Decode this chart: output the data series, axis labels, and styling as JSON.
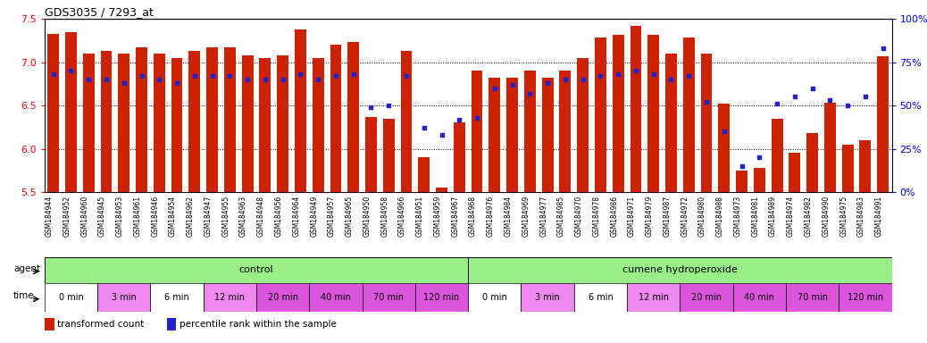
{
  "title": "GDS3035 / 7293_at",
  "bar_color": "#cc2200",
  "dot_color": "#2222cc",
  "ylim_left": [
    5.5,
    7.5
  ],
  "ylim_right": [
    0,
    100
  ],
  "yticks_left": [
    5.5,
    6.0,
    6.5,
    7.0,
    7.5
  ],
  "yticks_right": [
    0,
    25,
    50,
    75,
    100
  ],
  "samples": [
    "GSM184944",
    "GSM184952",
    "GSM184960",
    "GSM184945",
    "GSM184953",
    "GSM184961",
    "GSM184946",
    "GSM184954",
    "GSM184962",
    "GSM184947",
    "GSM184955",
    "GSM184963",
    "GSM184948",
    "GSM184956",
    "GSM184964",
    "GSM184949",
    "GSM184957",
    "GSM184965",
    "GSM184950",
    "GSM184958",
    "GSM184966",
    "GSM184951",
    "GSM184959",
    "GSM184967",
    "GSM184968",
    "GSM184976",
    "GSM184984",
    "GSM184969",
    "GSM184977",
    "GSM184985",
    "GSM184970",
    "GSM184978",
    "GSM184986",
    "GSM184971",
    "GSM184979",
    "GSM184987",
    "GSM184972",
    "GSM184980",
    "GSM184988",
    "GSM184973",
    "GSM184981",
    "GSM184989",
    "GSM184974",
    "GSM184982",
    "GSM184990",
    "GSM184975",
    "GSM184983",
    "GSM184991"
  ],
  "bar_values": [
    7.33,
    7.35,
    7.1,
    7.13,
    7.1,
    7.17,
    7.1,
    7.05,
    7.13,
    7.17,
    7.17,
    7.08,
    7.05,
    7.08,
    7.38,
    7.05,
    7.2,
    7.23,
    6.37,
    6.35,
    7.13,
    5.9,
    5.55,
    6.3,
    6.9,
    6.82,
    6.82,
    6.9,
    6.82,
    6.9,
    7.05,
    7.28,
    7.32,
    7.42,
    7.32,
    7.1,
    7.28,
    7.1,
    6.52,
    5.75,
    5.78,
    6.35,
    5.95,
    6.18,
    6.53,
    6.05,
    6.1,
    7.07
  ],
  "dot_values": [
    68,
    70,
    65,
    65,
    63,
    67,
    65,
    63,
    67,
    67,
    67,
    65,
    65,
    65,
    68,
    65,
    67,
    68,
    49,
    50,
    67,
    37,
    33,
    42,
    43,
    60,
    62,
    57,
    63,
    65,
    65,
    67,
    68,
    70,
    68,
    65,
    67,
    52,
    35,
    15,
    20,
    51,
    55,
    60,
    53,
    50,
    55,
    83
  ],
  "time_groups": [
    {
      "label": "0 min",
      "start": 0,
      "end": 3,
      "color": "#ffffff"
    },
    {
      "label": "3 min",
      "start": 3,
      "end": 6,
      "color": "#ee88ee"
    },
    {
      "label": "6 min",
      "start": 6,
      "end": 9,
      "color": "#ffffff"
    },
    {
      "label": "12 min",
      "start": 9,
      "end": 12,
      "color": "#ee88ee"
    },
    {
      "label": "20 min",
      "start": 12,
      "end": 15,
      "color": "#dd55dd"
    },
    {
      "label": "40 min",
      "start": 15,
      "end": 18,
      "color": "#dd55dd"
    },
    {
      "label": "70 min",
      "start": 18,
      "end": 21,
      "color": "#dd55dd"
    },
    {
      "label": "120 min",
      "start": 21,
      "end": 24,
      "color": "#dd55dd"
    },
    {
      "label": "0 min",
      "start": 24,
      "end": 27,
      "color": "#ffffff"
    },
    {
      "label": "3 min",
      "start": 27,
      "end": 30,
      "color": "#ee88ee"
    },
    {
      "label": "6 min",
      "start": 30,
      "end": 33,
      "color": "#ffffff"
    },
    {
      "label": "12 min",
      "start": 33,
      "end": 36,
      "color": "#ee88ee"
    },
    {
      "label": "20 min",
      "start": 36,
      "end": 39,
      "color": "#dd55dd"
    },
    {
      "label": "40 min",
      "start": 39,
      "end": 42,
      "color": "#dd55dd"
    },
    {
      "label": "70 min",
      "start": 42,
      "end": 45,
      "color": "#dd55dd"
    },
    {
      "label": "120 min",
      "start": 45,
      "end": 48,
      "color": "#dd55dd"
    }
  ],
  "agent_color": "#99ee88",
  "legend_bar_label": "transformed count",
  "legend_dot_label": "percentile rank within the sample",
  "bar_width": 0.65,
  "xtick_bg": "#dddddd"
}
